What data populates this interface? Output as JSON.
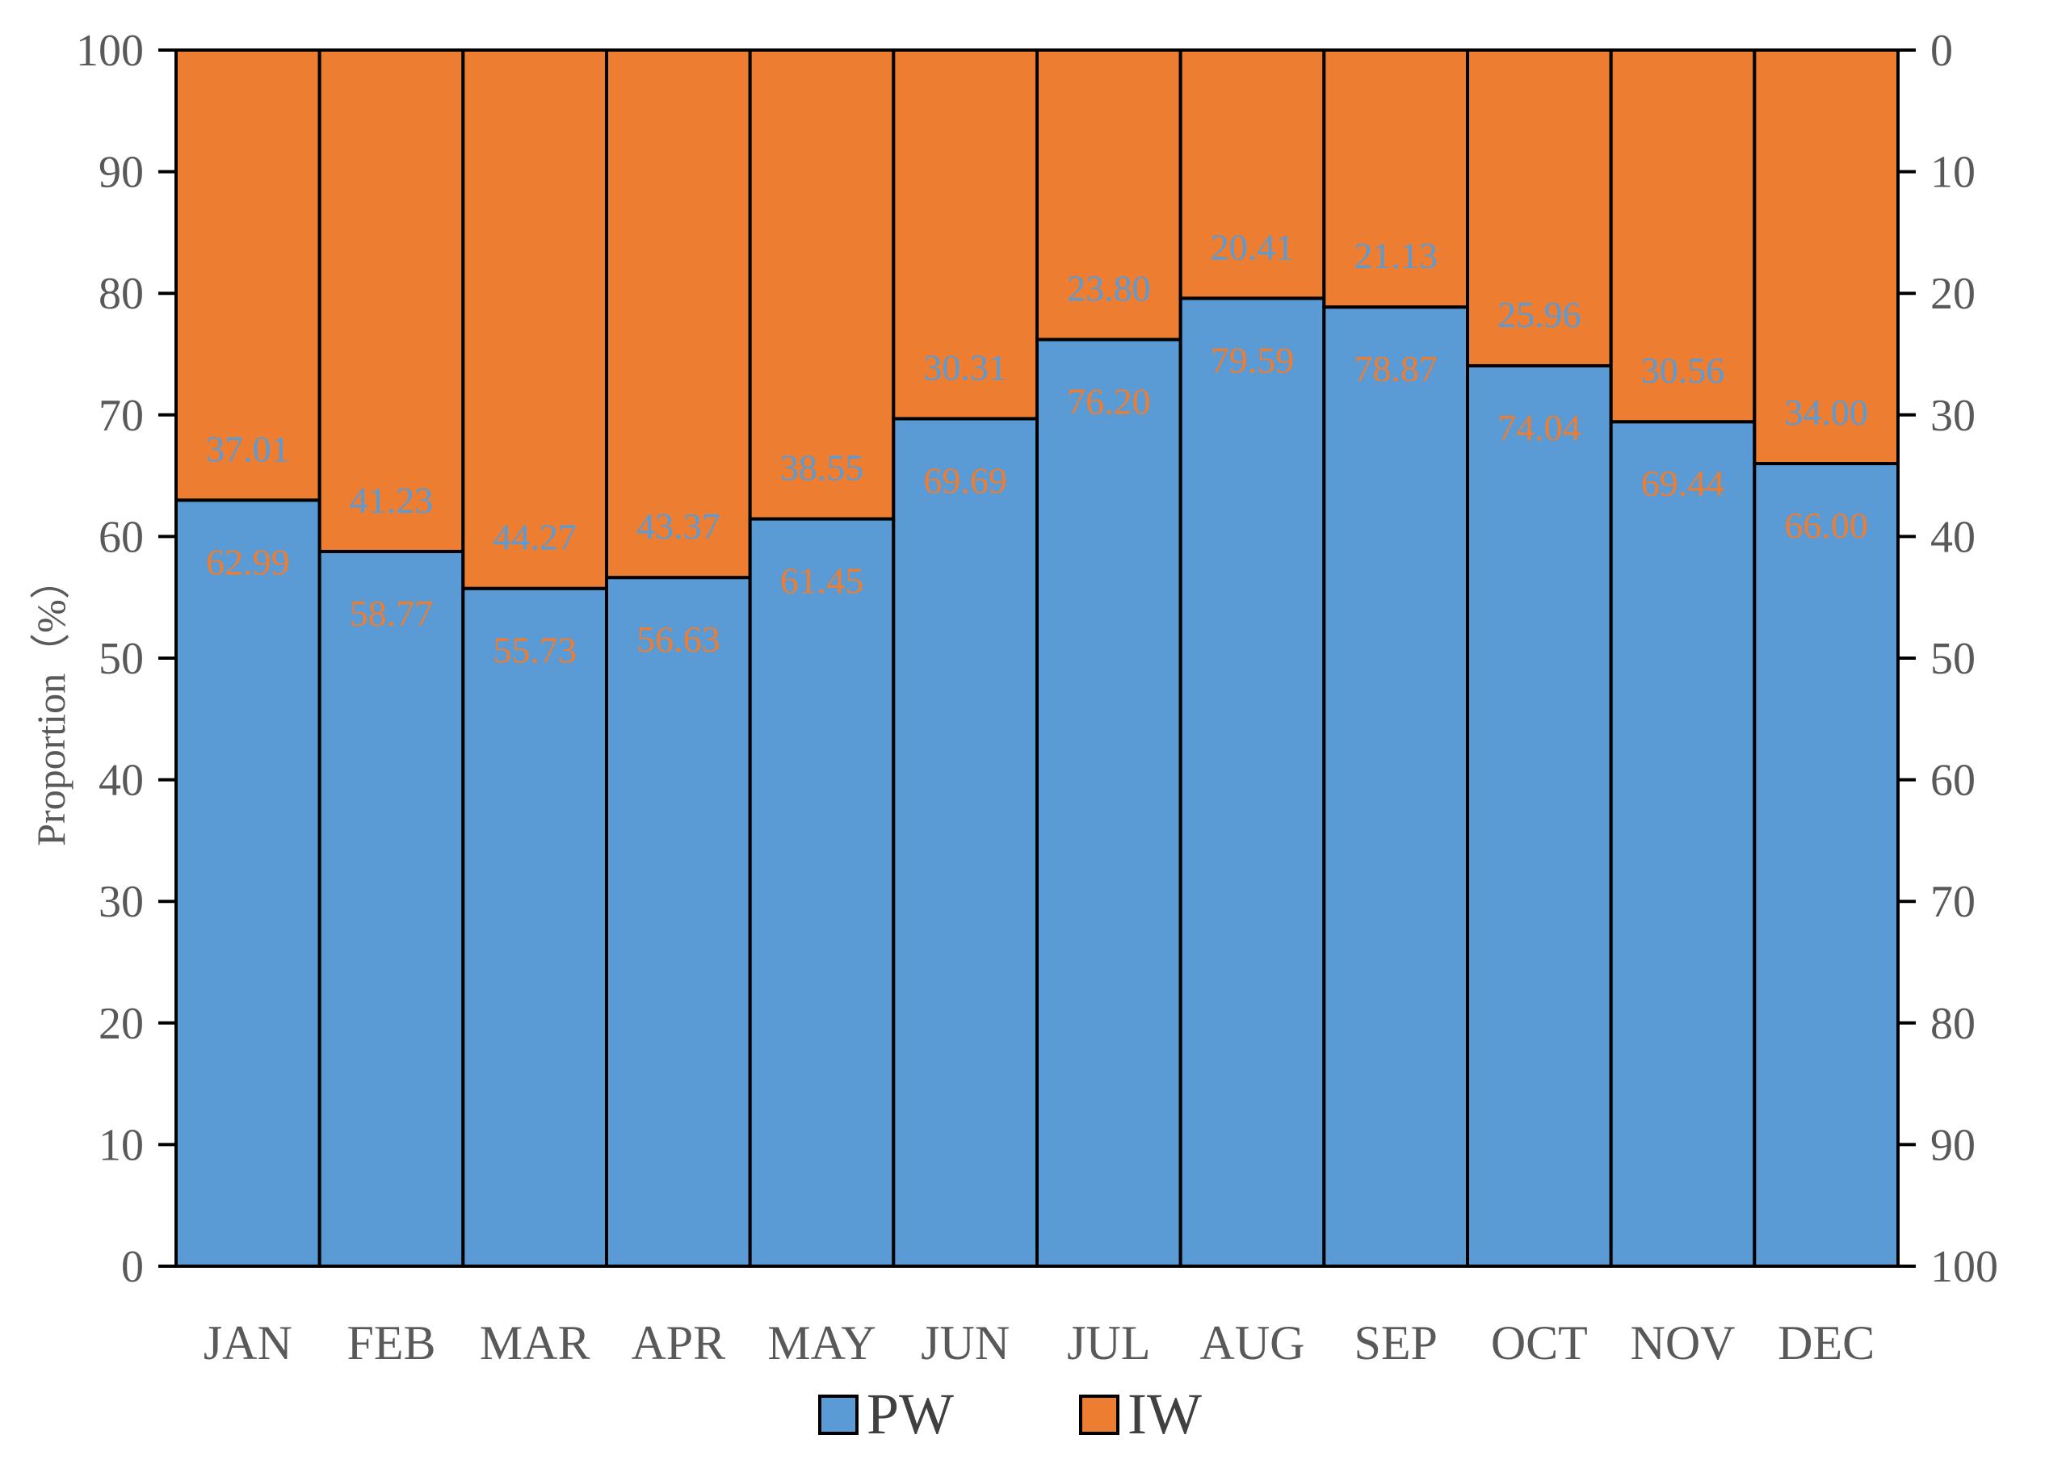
{
  "chart_data": {
    "type": "bar",
    "stacked": true,
    "categories": [
      "JAN",
      "FEB",
      "MAR",
      "APR",
      "MAY",
      "JUN",
      "JUL",
      "AUG",
      "SEP",
      "OCT",
      "NOV",
      "DEC"
    ],
    "series": [
      {
        "name": "PW",
        "color": "#5b9bd5",
        "label_color": "#ed7d31",
        "values": [
          62.99,
          58.77,
          55.73,
          56.63,
          61.45,
          69.69,
          76.2,
          79.59,
          78.87,
          74.04,
          69.44,
          66.0
        ],
        "labels": [
          "62.99",
          "58.77",
          "55.73",
          "56.63",
          "61.45",
          "69.69",
          "76.20",
          "79.59",
          "78.87",
          "74.04",
          "69.44",
          "66.00"
        ]
      },
      {
        "name": "IW",
        "color": "#ed7d31",
        "label_color": "#5b9bd5",
        "values": [
          37.01,
          41.23,
          44.27,
          43.37,
          38.55,
          30.31,
          23.8,
          20.41,
          21.13,
          25.96,
          30.56,
          34.0
        ],
        "labels": [
          "37.01",
          "41.23",
          "44.27",
          "43.37",
          "38.55",
          "30.31",
          "23.80",
          "20.41",
          "21.13",
          "25.96",
          "30.56",
          "34.00"
        ]
      }
    ],
    "ylabel": "Proportion（%）",
    "ylim": [
      0,
      100
    ],
    "y_ticks": [
      "0",
      "10",
      "20",
      "30",
      "40",
      "50",
      "60",
      "70",
      "80",
      "90",
      "100"
    ],
    "y2_ticks": [
      "100",
      "90",
      "80",
      "70",
      "60",
      "50",
      "40",
      "30",
      "20",
      "10",
      "0"
    ],
    "y2_reversed": true,
    "grid": false,
    "legend_position": "bottom"
  }
}
